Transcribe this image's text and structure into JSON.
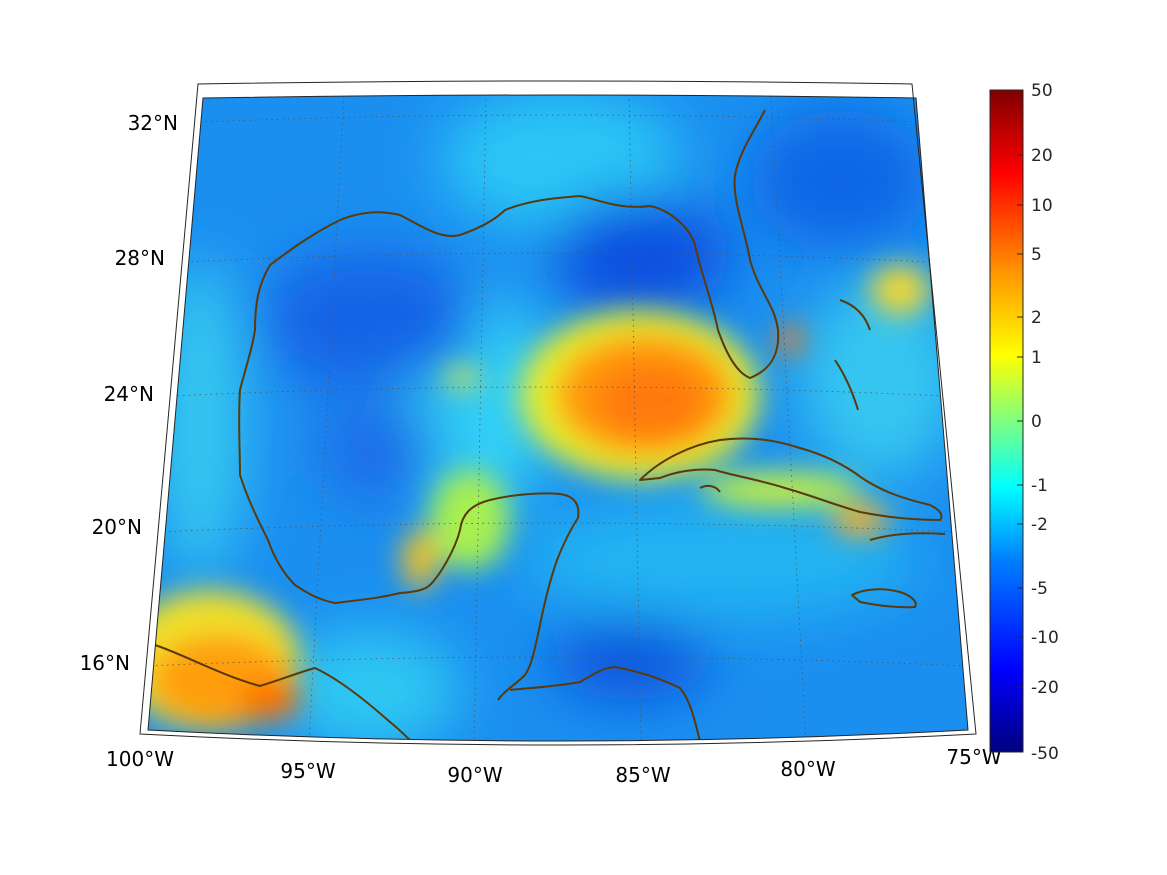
{
  "map": {
    "projection": "conic",
    "extent": {
      "lon_min": -100,
      "lon_max": -75,
      "lat_min": 14,
      "lat_max": 33
    },
    "lon_labels": [
      "100°W",
      "95°W",
      "90°W",
      "85°W",
      "80°W",
      "75°W"
    ],
    "lat_labels": [
      "32°N",
      "28°N",
      "24°N",
      "20°N",
      "16°N"
    ],
    "coastline_color": "#5a3a0a",
    "grid": "dotted",
    "features": [
      {
        "name": "warm-anomaly-se-gulf",
        "lon": -85,
        "lat": 24,
        "level": 5
      },
      {
        "name": "warm-anomaly-pacific-mexico",
        "lon": -98,
        "lat": 15.5,
        "level": 4
      },
      {
        "name": "cold-anomaly-florida-panhandle",
        "lon": -85,
        "lat": 28.5,
        "level": -10
      },
      {
        "name": "cold-anomaly-honduras-coast",
        "lon": -85,
        "lat": 16,
        "level": -10
      },
      {
        "name": "cold-anomaly-atlantic-ne",
        "lon": -78,
        "lat": 31,
        "level": -8
      }
    ]
  },
  "colorbar": {
    "tick_labels": [
      "50",
      "20",
      "10",
      "5",
      "2",
      "1",
      "0",
      "-1",
      "-2",
      "-5",
      "-10",
      "-20",
      "-50"
    ],
    "colors": [
      "#00007f",
      "#0000ff",
      "#007fff",
      "#00ffff",
      "#7fff7f",
      "#ffff00",
      "#ff7f00",
      "#ff0000",
      "#7f0000"
    ]
  }
}
